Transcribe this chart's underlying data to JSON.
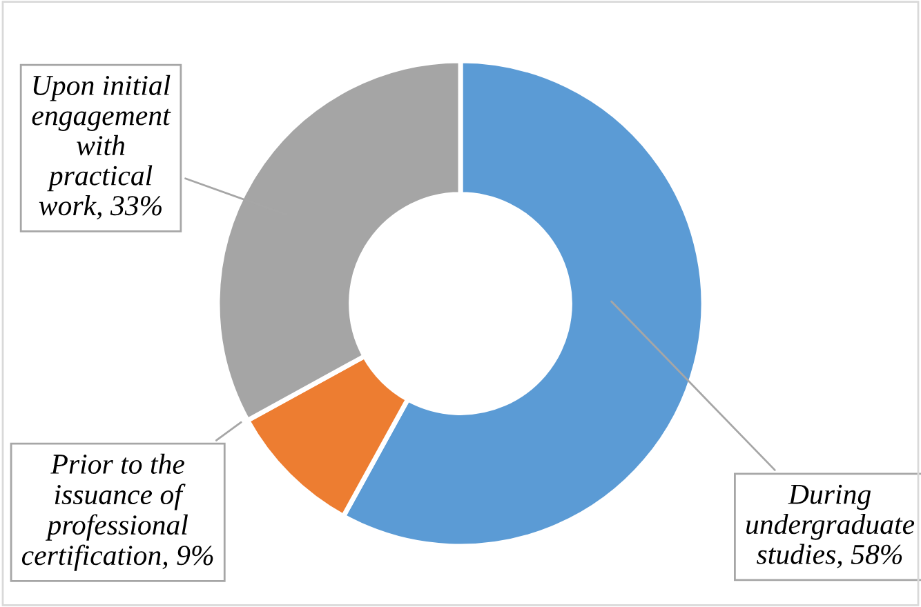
{
  "chart_data": {
    "type": "donut",
    "categories": [
      "During\nundergraduate\nstudies",
      "Prior to the\nissuance of\nprofessional\ncertification",
      "Upon initial\nengagement\nwith\npractical\nwork"
    ],
    "values": [
      58,
      9,
      33
    ],
    "value_labels": [
      "58%",
      "9%",
      "33%"
    ],
    "colors": [
      "#5b9bd5",
      "#ed7d31",
      "#a5a5a5"
    ]
  }
}
